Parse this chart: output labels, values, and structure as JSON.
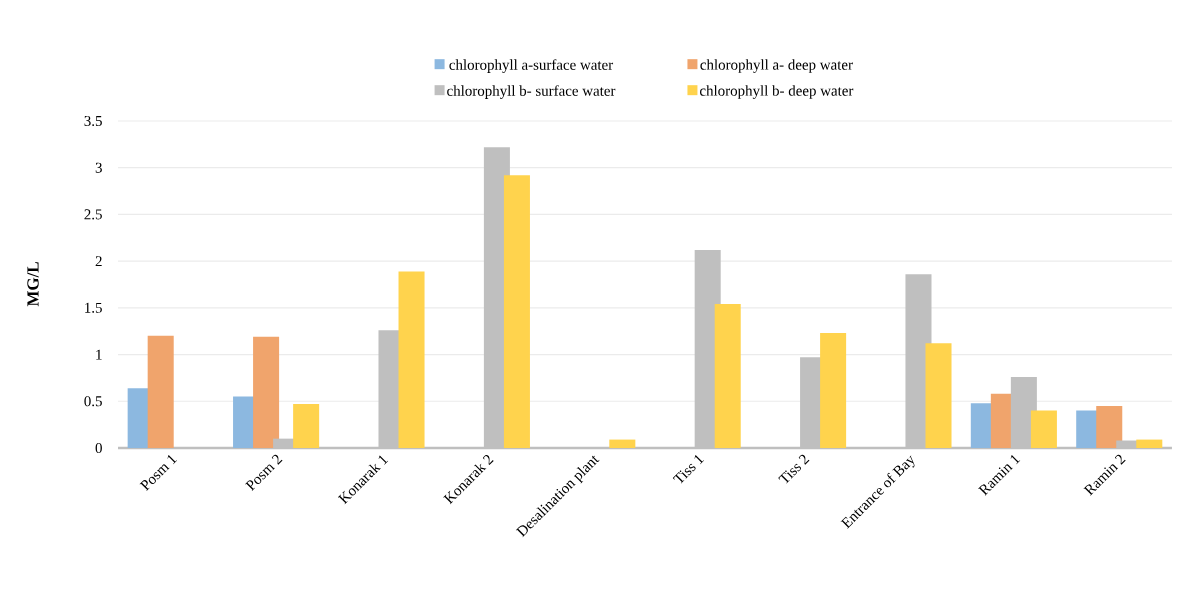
{
  "chart_data": {
    "type": "bar",
    "ylabel": "MG/L",
    "categories": [
      "Posm 1",
      "Posm 2",
      "Konarak 1",
      "Konarak 2",
      "Desalination plant",
      "Tiss 1",
      "Tiss 2",
      "Entrance of Bay",
      "Ramin 1",
      "Ramin 2"
    ],
    "series": [
      {
        "name": "chlorophyll a-surface water",
        "color": "#8cb8e0",
        "values": [
          0.64,
          0.55,
          0,
          0,
          0,
          0,
          0,
          0,
          0.48,
          0.4
        ]
      },
      {
        "name": "chlorophyll a- deep water",
        "color": "#f0a46c",
        "values": [
          1.2,
          1.19,
          0,
          0,
          0,
          0,
          0,
          0,
          0.58,
          0.45
        ]
      },
      {
        "name": "chlorophyll b- surface water",
        "color": "#bfbfbf",
        "values": [
          0,
          0.1,
          1.26,
          3.22,
          0,
          2.12,
          0.97,
          1.86,
          0.76,
          0.08
        ]
      },
      {
        "name": "chlorophyll b- deep water",
        "color": "#ffd34d",
        "values": [
          0,
          0.47,
          1.89,
          2.92,
          0.09,
          1.54,
          1.23,
          1.12,
          0.4,
          0.09
        ]
      }
    ],
    "ylim": [
      0,
      3.5
    ],
    "yticks": [
      0,
      0.5,
      1,
      1.5,
      2,
      2.5,
      3,
      3.5
    ],
    "grid": "y",
    "legend": "top"
  }
}
